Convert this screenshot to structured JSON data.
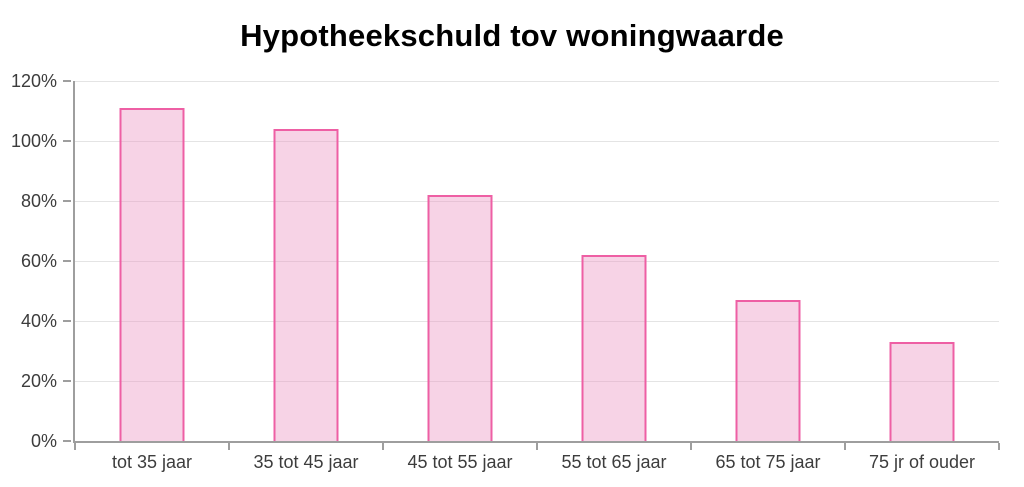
{
  "title": "Hypotheekschuld tov woningwaarde",
  "chart_data": {
    "type": "bar",
    "title": "Hypotheekschuld tov woningwaarde",
    "categories": [
      "tot 35 jaar",
      "35 tot 45 jaar",
      "45 tot 55 jaar",
      "55 tot 65 jaar",
      "65 tot 75 jaar",
      "75 jr of ouder"
    ],
    "values": [
      111,
      104,
      82,
      62,
      47,
      33
    ],
    "xlabel": "",
    "ylabel": "",
    "ylim": [
      0,
      120
    ],
    "ytick_step": 20,
    "ytick_labels": [
      "0%",
      "20%",
      "40%",
      "60%",
      "80%",
      "100%",
      "120%"
    ],
    "grid": true,
    "legend": false,
    "colors": {
      "bar_fill": "#F7D3E4",
      "bar_border": "#EE5FA4",
      "axis": "#9E9E9E",
      "gridline": "#E4E4E4",
      "tick_label": "#3C3C3C",
      "title": "#000000",
      "background": "#FFFFFF"
    }
  }
}
